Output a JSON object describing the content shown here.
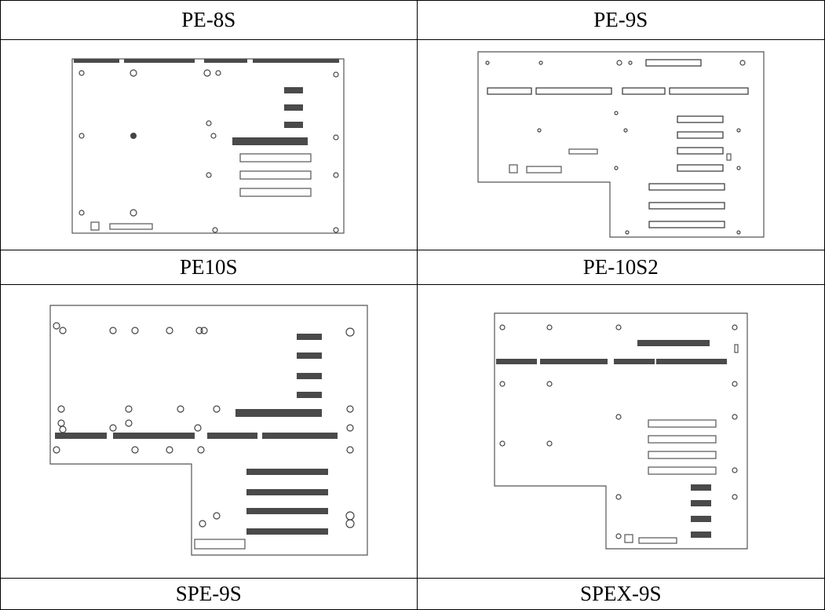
{
  "boards": [
    {
      "name": "PE-8S",
      "image": "pe-8s-backplane-drawing"
    },
    {
      "name": "PE-9S",
      "image": "pe-9s-backplane-drawing"
    },
    {
      "name": "PE10S",
      "image": "pe10s-backplane-drawing"
    },
    {
      "name": "PE-10S2",
      "image": "pe-10s2-backplane-drawing"
    },
    {
      "name": "SPE-9S",
      "image": "spe-9s-backplane-drawing"
    },
    {
      "name": "SPEX-9S",
      "image": "spex-9s-backplane-drawing"
    }
  ]
}
